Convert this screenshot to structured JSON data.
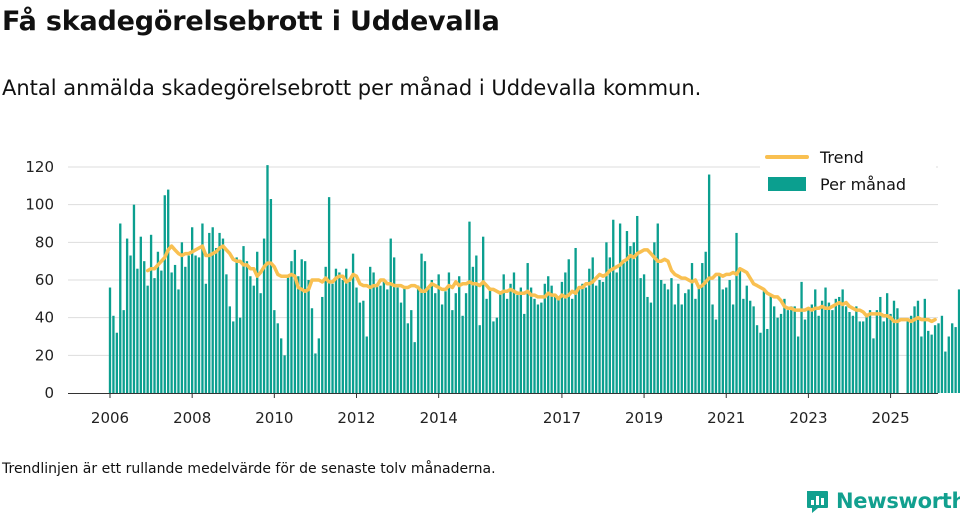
{
  "header": {
    "title": "Få skadegörelsebrott i Uddevalla",
    "subtitle": "Antal anmälda skadegörelsebrott per månad i Uddevalla kommun."
  },
  "footer": {
    "note": "Trendlinjen är ett rullande medelvärde för de senaste tolv månaderna.",
    "brand": "Newsworthy",
    "brand_icon": "newsworthy-logo-icon"
  },
  "colors": {
    "bars": "#0b9f8f",
    "trend": "#f9c051",
    "grid": "#dddddd",
    "brand": "#12a08f"
  },
  "chart_data": {
    "type": "bar",
    "title": "Få skadegörelsebrott i Uddevalla",
    "xlabel": "",
    "ylabel": "",
    "ylim": [
      0,
      120
    ],
    "yticks": [
      0,
      20,
      40,
      60,
      80,
      100,
      120
    ],
    "xticks": [
      "2006",
      "2008",
      "2010",
      "2012",
      "2014",
      "2017",
      "2019",
      "2021",
      "2023",
      "2025"
    ],
    "grid": true,
    "legend_position": "top-right",
    "x_start": "2006-01",
    "x_end": "2025-02",
    "series": [
      {
        "name": "Per månad",
        "type": "bar",
        "values": [
          56,
          41,
          32,
          90,
          44,
          82,
          73,
          100,
          66,
          83,
          70,
          57,
          84,
          61,
          75,
          65,
          105,
          108,
          64,
          68,
          55,
          80,
          67,
          73,
          88,
          73,
          72,
          90,
          58,
          85,
          88,
          77,
          85,
          82,
          63,
          46,
          38,
          72,
          40,
          78,
          70,
          62,
          57,
          75,
          53,
          82,
          121,
          103,
          44,
          37,
          29,
          20,
          62,
          70,
          76,
          62,
          71,
          70,
          60,
          45,
          21,
          29,
          51,
          67,
          104,
          58,
          66,
          64,
          60,
          66,
          59,
          74,
          56,
          48,
          49,
          30,
          67,
          64,
          57,
          57,
          59,
          55,
          82,
          72,
          56,
          48,
          56,
          37,
          44,
          27,
          57,
          74,
          70,
          56,
          60,
          53,
          63,
          47,
          54,
          64,
          44,
          53,
          62,
          41,
          53,
          91,
          67,
          73,
          36,
          83,
          50,
          56,
          38,
          40,
          54,
          63,
          50,
          58,
          64,
          52,
          56,
          42,
          69,
          56,
          50,
          47,
          48,
          58,
          62,
          57,
          51,
          50,
          59,
          64,
          71,
          50,
          77,
          55,
          58,
          56,
          66,
          72,
          57,
          60,
          59,
          80,
          72,
          92,
          64,
          90,
          69,
          86,
          78,
          80,
          94,
          61,
          63,
          51,
          48,
          80,
          90,
          60,
          58,
          55,
          61,
          47,
          58,
          47,
          53,
          55,
          69,
          50,
          56,
          69,
          75,
          116,
          47,
          39,
          63,
          55,
          56,
          60,
          47,
          85,
          66,
          50,
          57,
          49,
          46,
          36,
          32,
          54,
          34,
          52,
          46,
          40,
          42,
          50,
          44,
          46,
          46,
          30,
          59,
          39,
          45,
          47,
          55,
          41,
          49,
          56,
          48,
          44,
          50,
          51,
          55,
          46,
          43,
          41,
          46,
          38,
          38,
          41,
          44,
          29,
          44,
          51,
          38,
          53,
          42,
          49,
          45,
          0,
          0,
          38,
          41,
          46,
          49,
          30,
          50,
          33,
          31,
          36,
          37,
          41,
          22,
          30,
          37,
          35,
          55,
          21
        ]
      },
      {
        "name": "Trend",
        "type": "line",
        "start": "2006-12",
        "values": [
          65,
          66,
          66,
          68,
          70,
          72,
          76,
          78,
          76,
          74,
          73,
          74,
          74,
          75,
          76,
          77,
          78,
          73,
          73,
          74,
          75,
          77,
          78,
          76,
          74,
          71,
          70,
          70,
          68,
          68,
          66,
          66,
          62,
          64,
          67,
          69,
          69,
          67,
          63,
          62,
          62,
          62,
          63,
          62,
          56,
          55,
          54,
          55,
          60,
          60,
          60,
          59,
          61,
          59,
          59,
          61,
          62,
          62,
          59,
          60,
          63,
          62,
          58,
          57,
          57,
          56,
          57,
          57,
          60,
          60,
          58,
          58,
          57,
          57,
          57,
          56,
          56,
          57,
          57,
          56,
          54,
          54,
          56,
          58,
          57,
          56,
          55,
          55,
          57,
          56,
          59,
          57,
          58,
          58,
          59,
          58,
          58,
          57,
          59,
          57,
          55,
          55,
          54,
          53,
          54,
          54,
          55,
          54,
          53,
          53,
          53,
          54,
          52,
          52,
          51,
          51,
          51,
          53,
          52,
          52,
          50,
          52,
          51,
          52,
          54,
          53,
          56,
          56,
          58,
          58,
          59,
          61,
          63,
          62,
          63,
          65,
          66,
          67,
          68,
          70,
          71,
          73,
          72,
          74,
          75,
          76,
          76,
          74,
          72,
          70,
          70,
          71,
          70,
          65,
          63,
          62,
          61,
          61,
          60,
          59,
          60,
          56,
          57,
          59,
          61,
          61,
          63,
          63,
          62,
          63,
          63,
          64,
          63,
          66,
          65,
          64,
          61,
          58,
          57,
          56,
          55,
          53,
          52,
          51,
          51,
          49,
          46,
          45,
          45,
          44,
          44,
          44,
          44,
          45,
          44,
          45,
          45,
          46,
          45,
          45,
          46,
          47,
          48,
          47,
          48,
          46,
          45,
          44,
          44,
          43,
          41,
          42,
          42,
          42,
          42,
          41,
          41,
          40,
          38,
          38,
          39,
          39,
          39,
          38,
          39,
          40,
          39,
          39,
          39,
          38,
          39
        ]
      }
    ]
  }
}
